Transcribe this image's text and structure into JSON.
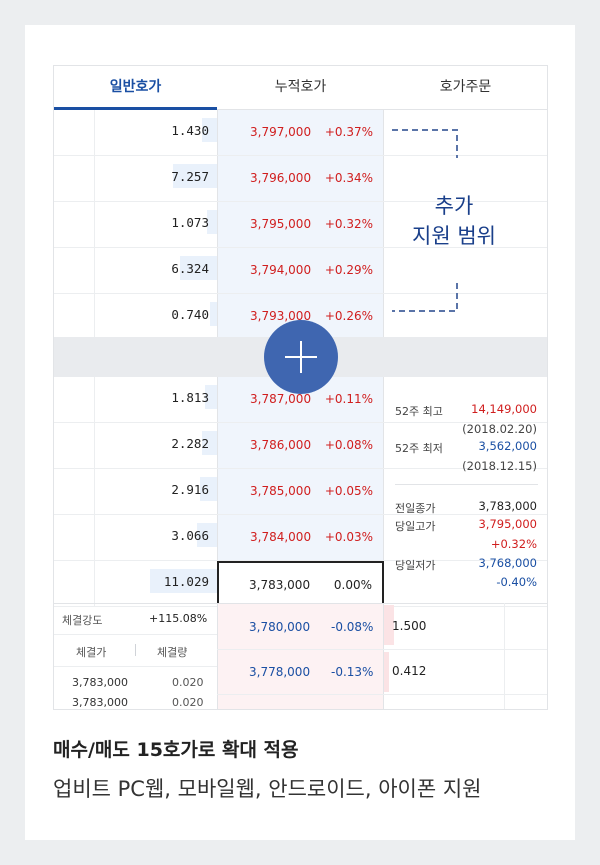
{
  "tabs": [
    "일반호가",
    "누적호가",
    "호가주문"
  ],
  "ask_rows": [
    {
      "qty": "1.430",
      "price": "3,797,000",
      "rate": "+0.37%",
      "bar": 0.12
    },
    {
      "qty": "7.257",
      "price": "3,796,000",
      "rate": "+0.34%",
      "bar": 0.36
    },
    {
      "qty": "1.073",
      "price": "3,795,000",
      "rate": "+0.32%",
      "bar": 0.08
    },
    {
      "qty": "6.324",
      "price": "3,794,000",
      "rate": "+0.29%",
      "bar": 0.3
    },
    {
      "qty": "0.740",
      "price": "3,793,000",
      "rate": "+0.26%",
      "bar": 0.06
    }
  ],
  "bid_rows": [
    {
      "qty": "1.813",
      "price": "3,787,000",
      "rate": "+0.11%",
      "bar": 0.1
    },
    {
      "qty": "2.282",
      "price": "3,786,000",
      "rate": "+0.08%",
      "bar": 0.12
    },
    {
      "qty": "2.916",
      "price": "3,785,000",
      "rate": "+0.05%",
      "bar": 0.14
    },
    {
      "qty": "3.066",
      "price": "3,784,000",
      "rate": "+0.03%",
      "bar": 0.16
    },
    {
      "qty": "11.029",
      "price": "3,783,000",
      "rate": "0.00%",
      "bar": 0.55
    }
  ],
  "note": {
    "line1": "추가",
    "line2": "지원 범위"
  },
  "info": {
    "high52_label": "52주 최고",
    "high52": "14,149,000",
    "high52_date": "(2018.02.20)",
    "low52_label": "52주 최저",
    "low52": "3,562,000",
    "low52_date": "(2018.12.15)",
    "prev_close_label": "전일종가",
    "prev_close": "3,783,000",
    "day_high_label": "당일고가",
    "day_high": "3,795,000",
    "day_high_rate": "+0.32%",
    "day_low_label": "당일저가",
    "day_low": "3,768,000",
    "day_low_rate": "-0.40%"
  },
  "strength": {
    "label": "체결강도",
    "value": "+115.08%"
  },
  "trades": {
    "col_price": "체결가",
    "col_qty": "체결량",
    "rows": [
      {
        "price": "3,783,000",
        "qty": "0.020"
      },
      {
        "price": "3,783,000",
        "qty": "0.020"
      }
    ]
  },
  "lower_bids": [
    {
      "price": "3,780,000",
      "rate": "-0.08%",
      "qty": "1.500"
    },
    {
      "price": "3,778,000",
      "rate": "-0.13%",
      "qty": "0.412"
    }
  ],
  "caption": "매수/매도 15호가로 확대 적용",
  "caption2": "업비트 PC웹, 모바일웹, 안드로이드, 아이폰 지원",
  "colors": {
    "accent": "#1a4fa3",
    "up": "#d01e1e",
    "plus_button": "#3f66b0"
  }
}
